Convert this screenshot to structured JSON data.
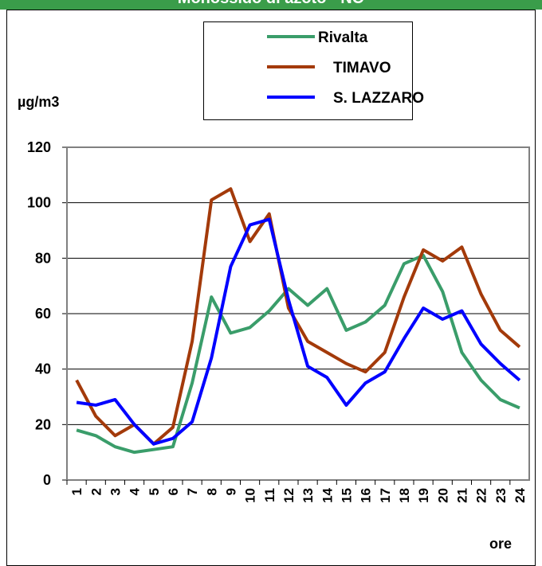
{
  "chart_data": {
    "type": "line",
    "title": "Monossido di azoto - NO",
    "y_label": "µg/m3",
    "x_label": "ore",
    "categories": [
      "1",
      "2",
      "3",
      "4",
      "5",
      "6",
      "7",
      "8",
      "9",
      "10",
      "11",
      "12",
      "13",
      "14",
      "15",
      "16",
      "17",
      "18",
      "19",
      "20",
      "21",
      "22",
      "23",
      "24"
    ],
    "series": [
      {
        "name": "Rivalta",
        "color": "#3a9d6a",
        "values": [
          18,
          16,
          12,
          10,
          11,
          12,
          35,
          66,
          53,
          55,
          61,
          69,
          63,
          69,
          54,
          57,
          63,
          78,
          81,
          68,
          46,
          36,
          29,
          26
        ]
      },
      {
        "name": "TIMAVO",
        "color": "#a33a0a",
        "values": [
          36,
          23,
          16,
          20,
          13,
          19,
          50,
          101,
          105,
          86,
          96,
          62,
          50,
          46,
          42,
          39,
          46,
          66,
          83,
          79,
          84,
          67,
          54,
          48
        ]
      },
      {
        "name": "S. LAZZARO",
        "color": "#0000ff",
        "values": [
          28,
          27,
          29,
          20,
          13,
          15,
          21,
          44,
          77,
          92,
          94,
          65,
          41,
          37,
          27,
          35,
          39,
          51,
          62,
          58,
          61,
          49,
          42,
          36
        ]
      }
    ],
    "ylim": [
      0,
      120
    ],
    "yticks": [
      0,
      20,
      40,
      60,
      80,
      100,
      120
    ],
    "grid": true
  }
}
